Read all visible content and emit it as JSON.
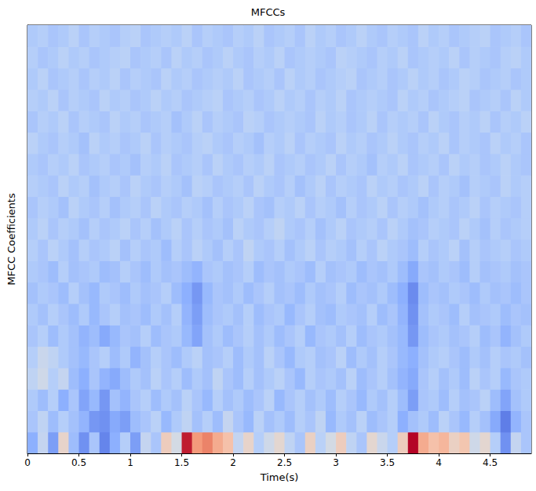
{
  "chart_data": {
    "type": "heatmap",
    "title": "MFCCs",
    "x_label": "Time(s)",
    "y_label": "MFCC Coefficients",
    "x": [
      0,
      0.1,
      0.2,
      0.3,
      0.4,
      0.5,
      0.6,
      0.7,
      0.8,
      0.9,
      1,
      1.1,
      1.2,
      1.3,
      1.4,
      1.5,
      1.6,
      1.7,
      1.8,
      1.9,
      2,
      2.1,
      2.2,
      2.3,
      2.4,
      2.5,
      2.6,
      2.7,
      2.8,
      2.9,
      3,
      3.1,
      3.2,
      3.3,
      3.4,
      3.5,
      3.6,
      3.7,
      3.8,
      3.9,
      4,
      4.1,
      4.2,
      4.3,
      4.4,
      4.5,
      4.6,
      4.7,
      4.8
    ],
    "y": [
      0,
      1,
      2,
      3,
      4,
      5,
      6,
      7,
      8,
      9,
      10,
      11,
      12,
      13,
      14,
      15,
      16,
      17,
      18,
      19
    ],
    "cells": [
      [
        -1.5,
        -0.5,
        -1.8,
        0.3,
        -1.2,
        -2.0,
        -1.0,
        -2.2,
        -1.5,
        -0.8,
        -1.8,
        -0.5,
        -1.0,
        0.5,
        -0.2,
        2.8,
        1.5,
        1.8,
        1.2,
        0.8,
        -0.5,
        0.3,
        -0.8,
        -0.3,
        0.2,
        -0.6,
        -1.0,
        0.4,
        -0.7,
        -0.2,
        0.5,
        -0.6,
        -1.0,
        0.2,
        -0.4,
        -0.8,
        0.5,
        3.0,
        1.2,
        0.8,
        1.0,
        0.4,
        0.7,
        -0.3,
        0.2,
        -0.8,
        -2.0,
        -0.5,
        -1.0
      ],
      [
        -1.0,
        -0.6,
        -1.2,
        -0.8,
        -1.1,
        -1.4,
        -1.9,
        -2.0,
        -1.6,
        -1.8,
        -1.2,
        -1.0,
        -0.7,
        -1.3,
        -0.9,
        -0.6,
        -1.1,
        -0.8,
        -1.2,
        -0.5,
        -1.0,
        -1.3,
        -0.7,
        -1.1,
        -0.9,
        -1.2,
        -0.8,
        -1.0,
        -0.6,
        -1.3,
        -0.9,
        -1.1,
        -0.7,
        -1.2,
        -1.0,
        -0.8,
        -1.5,
        -1.1,
        -0.9,
        -1.2,
        -0.7,
        -1.0,
        -1.3,
        -0.8,
        -1.1,
        -1.6,
        -2.3,
        -1.4,
        -1.0
      ],
      [
        -0.9,
        -1.2,
        -0.8,
        -1.5,
        -1.0,
        -1.7,
        -1.3,
        -1.9,
        -1.1,
        -1.4,
        -1.0,
        -0.8,
        -1.2,
        -0.9,
        -1.1,
        -0.7,
        -1.0,
        -1.3,
        -0.8,
        -1.1,
        -0.9,
        -1.2,
        -1.0,
        -0.7,
        -1.3,
        -1.0,
        -0.8,
        -1.1,
        -0.9,
        -1.2,
        -0.8,
        -1.0,
        -1.3,
        -0.9,
        -1.1,
        -0.8,
        -1.2,
        -1.8,
        -1.0,
        -0.9,
        -1.2,
        -0.8,
        -1.1,
        -1.0,
        -0.7,
        -1.2,
        -1.7,
        -1.1,
        -0.9
      ],
      [
        -0.6,
        -0.3,
        -0.8,
        -0.5,
        -1.2,
        -1.5,
        -1.0,
        -1.4,
        -1.6,
        -1.2,
        -0.9,
        -1.1,
        -0.7,
        -1.0,
        -0.8,
        -1.2,
        -0.9,
        -1.1,
        -0.6,
        -1.0,
        -1.2,
        -0.8,
        -1.1,
        -0.9,
        -0.7,
        -1.0,
        -1.3,
        -0.8,
        -1.0,
        -0.9,
        -1.1,
        -0.7,
        -1.2,
        -1.0,
        -0.8,
        -1.1,
        -1.4,
        -1.6,
        -1.0,
        -0.8,
        -1.1,
        -0.9,
        -1.2,
        -0.7,
        -1.0,
        -0.8,
        -1.3,
        -1.0,
        -0.9
      ],
      [
        -0.8,
        -0.4,
        -0.6,
        -0.9,
        -1.1,
        -1.3,
        -1.0,
        -0.8,
        -1.2,
        -0.9,
        -1.4,
        -1.1,
        -0.8,
        -1.0,
        -1.2,
        -0.9,
        -0.7,
        -1.1,
        -1.0,
        -0.8,
        -1.2,
        -0.9,
        -1.1,
        -0.7,
        -1.0,
        -1.3,
        -0.9,
        -0.8,
        -1.1,
        -1.0,
        -0.7,
        -1.2,
        -0.9,
        -1.1,
        -0.8,
        -1.0,
        -1.3,
        -1.5,
        -1.1,
        -0.9,
        -0.8,
        -1.0,
        -1.2,
        -0.9,
        -1.1,
        -0.8,
        -1.0,
        -0.9,
        -1.1
      ],
      [
        -1.0,
        -0.8,
        -1.2,
        -0.9,
        -1.1,
        -1.4,
        -1.2,
        -1.6,
        -1.3,
        -1.0,
        -1.1,
        -0.8,
        -1.2,
        -1.0,
        -0.9,
        -1.3,
        -1.7,
        -1.1,
        -0.9,
        -1.2,
        -1.0,
        -0.8,
        -1.1,
        -0.9,
        -1.2,
        -1.0,
        -0.8,
        -1.3,
        -1.0,
        -0.9,
        -1.1,
        -0.8,
        -1.2,
        -1.0,
        -0.9,
        -1.1,
        -1.3,
        -1.9,
        -1.2,
        -1.0,
        -0.9,
        -1.1,
        -1.0,
        -0.8,
        -1.2,
        -1.0,
        -1.4,
        -1.1,
        -0.9
      ],
      [
        -0.9,
        -1.1,
        -0.8,
        -1.0,
        -1.2,
        -0.9,
        -1.3,
        -1.0,
        -0.8,
        -1.1,
        -1.0,
        -1.2,
        -0.9,
        -1.1,
        -0.8,
        -1.4,
        -1.8,
        -1.2,
        -1.0,
        -0.9,
        -1.1,
        -0.8,
        -1.2,
        -1.0,
        -0.9,
        -1.3,
        -1.0,
        -0.8,
        -1.1,
        -1.2,
        -0.9,
        -1.0,
        -1.1,
        -0.8,
        -1.2,
        -1.0,
        -1.4,
        -2.0,
        -1.1,
        -0.9,
        -1.0,
        -1.2,
        -0.8,
        -1.1,
        -1.0,
        -0.9,
        -1.2,
        -1.0,
        -1.1
      ],
      [
        -1.1,
        -0.9,
        -1.0,
        -1.2,
        -0.8,
        -1.1,
        -1.3,
        -0.9,
        -1.0,
        -1.2,
        -0.9,
        -1.1,
        -1.0,
        -0.8,
        -1.2,
        -1.5,
        -1.9,
        -1.3,
        -1.0,
        -1.1,
        -0.9,
        -1.2,
        -1.0,
        -0.8,
        -1.1,
        -1.0,
        -1.2,
        -0.9,
        -1.1,
        -1.0,
        -0.8,
        -1.2,
        -1.0,
        -1.1,
        -0.9,
        -1.2,
        -1.5,
        -2.1,
        -1.2,
        -1.0,
        -1.1,
        -0.9,
        -1.0,
        -1.2,
        -0.9,
        -1.1,
        -1.0,
        -1.2,
        -1.0
      ],
      [
        -0.9,
        -1.0,
        -1.2,
        -0.8,
        -1.1,
        -1.0,
        -0.9,
        -1.2,
        -1.1,
        -0.8,
        -1.0,
        -1.2,
        -0.9,
        -1.1,
        -1.0,
        -1.2,
        -1.4,
        -1.0,
        -0.9,
        -1.1,
        -1.0,
        -0.8,
        -1.2,
        -1.0,
        -1.1,
        -0.9,
        -1.0,
        -1.2,
        -0.8,
        -1.1,
        -1.0,
        -0.9,
        -1.2,
        -1.0,
        -1.1,
        -0.9,
        -1.2,
        -1.6,
        -1.0,
        -1.1,
        -0.9,
        -1.0,
        -1.2,
        -0.8,
        -1.1,
        -1.0,
        -0.9,
        -1.1,
        -1.0
      ],
      [
        -0.8,
        -1.0,
        -0.7,
        -0.9,
        -1.1,
        -0.8,
        -1.0,
        -0.9,
        -0.7,
        -1.1,
        -0.8,
        -1.0,
        -0.9,
        -1.2,
        -0.8,
        -1.0,
        -0.7,
        -0.9,
        -1.1,
        -0.8,
        -1.0,
        -0.6,
        -0.9,
        -1.0,
        -0.8,
        -1.1,
        -0.9,
        -0.7,
        -1.0,
        -0.8,
        -0.9,
        -1.1,
        -0.8,
        -1.0,
        -0.7,
        -0.9,
        -1.0,
        -1.2,
        -0.8,
        -1.0,
        -0.9,
        -0.7,
        -1.1,
        -0.8,
        -1.0,
        -0.9,
        -0.8,
        -1.0,
        -0.9
      ],
      [
        -0.9,
        -0.7,
        -1.0,
        -0.8,
        -0.9,
        -1.1,
        -0.8,
        -1.0,
        -0.9,
        -0.7,
        -1.0,
        -0.8,
        -1.1,
        -0.9,
        -0.7,
        -1.0,
        -0.8,
        -1.0,
        -0.9,
        -1.1,
        -0.7,
        -0.9,
        -1.0,
        -0.8,
        -0.6,
        -0.9,
        -1.0,
        -0.8,
        -1.1,
        -0.9,
        -0.7,
        -1.0,
        -0.9,
        -0.8,
        -1.0,
        -0.7,
        -0.9,
        -1.1,
        -1.0,
        -0.8,
        -0.9,
        -1.0,
        -0.7,
        -0.9,
        -1.1,
        -0.8,
        -1.0,
        -0.9,
        -0.8
      ],
      [
        -1.0,
        -0.8,
        -0.9,
        -1.1,
        -0.7,
        -0.9,
        -1.0,
        -0.8,
        -1.1,
        -0.9,
        -0.8,
        -1.0,
        -0.7,
        -0.9,
        -1.0,
        -0.8,
        -0.9,
        -1.1,
        -0.8,
        -1.0,
        -0.9,
        -0.7,
        -1.0,
        -1.1,
        -0.8,
        -0.9,
        -0.7,
        -1.0,
        -0.8,
        -0.9,
        -1.1,
        -0.8,
        -1.0,
        -0.9,
        -0.7,
        -1.0,
        -0.8,
        -0.9,
        -1.1,
        -0.9,
        -0.8,
        -1.0,
        -0.9,
        -0.7,
        -1.0,
        -0.8,
        -0.9,
        -1.0,
        -0.8
      ],
      [
        -0.8,
        -0.9,
        -1.0,
        -0.7,
        -0.9,
        -0.8,
        -1.1,
        -0.9,
        -0.8,
        -1.0,
        -0.7,
        -0.9,
        -1.0,
        -0.8,
        -0.9,
        -1.1,
        -0.7,
        -0.8,
        -1.0,
        -0.9,
        -0.8,
        -1.0,
        -0.7,
        -0.9,
        -1.0,
        -0.8,
        -1.1,
        -0.9,
        -0.7,
        -1.0,
        -0.8,
        -0.9,
        -1.0,
        -0.7,
        -0.9,
        -0.8,
        -1.0,
        -0.9,
        -0.7,
        -1.0,
        -0.8,
        -0.9,
        -1.1,
        -0.8,
        -0.9,
        -1.0,
        -0.7,
        -0.9,
        -0.8
      ],
      [
        -0.9,
        -1.0,
        -0.8,
        -0.9,
        -0.7,
        -1.0,
        -0.9,
        -0.8,
        -1.0,
        -0.9,
        -1.1,
        -0.8,
        -0.9,
        -0.7,
        -1.0,
        -0.9,
        -0.8,
        -1.0,
        -0.7,
        -0.9,
        -1.0,
        -0.8,
        -0.9,
        -0.7,
        -1.0,
        -0.9,
        -0.8,
        -1.0,
        -0.9,
        -0.7,
        -1.0,
        -0.8,
        -0.9,
        -1.1,
        -0.8,
        -0.9,
        -0.7,
        -1.0,
        -0.9,
        -0.8,
        -1.0,
        -0.7,
        -0.9,
        -0.8,
        -1.0,
        -0.9,
        -0.7,
        -0.9,
        -1.0
      ],
      [
        -0.7,
        -0.9,
        -1.0,
        -0.8,
        -0.9,
        -1.1,
        -0.7,
        -0.9,
        -0.8,
        -1.0,
        -0.9,
        -0.7,
        -1.0,
        -0.8,
        -0.9,
        -1.0,
        -0.8,
        -0.7,
        -0.9,
        -1.0,
        -0.8,
        -0.9,
        -1.1,
        -0.8,
        -0.9,
        -0.7,
        -1.0,
        -0.8,
        -0.9,
        -1.0,
        -0.7,
        -0.9,
        -0.8,
        -1.0,
        -0.9,
        -0.7,
        -0.9,
        -1.0,
        -0.8,
        -0.9,
        -0.7,
        -1.0,
        -0.8,
        -0.9,
        -1.0,
        -0.7,
        -0.9,
        -0.8,
        -1.0
      ],
      [
        -1.0,
        -0.8,
        -0.9,
        -0.7,
        -1.0,
        -0.8,
        -0.9,
        -1.0,
        -0.7,
        -0.9,
        -0.8,
        -1.0,
        -0.9,
        -0.8,
        -1.1,
        -0.9,
        -0.7,
        -1.0,
        -0.8,
        -0.9,
        -1.0,
        -0.7,
        -0.8,
        -1.0,
        -0.9,
        -0.8,
        -0.9,
        -1.0,
        -0.7,
        -0.9,
        -0.8,
        -1.0,
        -0.9,
        -0.7,
        -1.0,
        -0.8,
        -0.9,
        -0.8,
        -1.0,
        -0.7,
        -0.9,
        -1.0,
        -0.8,
        -0.9,
        -0.7,
        -1.0,
        -0.8,
        -0.9,
        -0.7
      ],
      [
        -0.8,
        -0.9,
        -0.7,
        -1.0,
        -0.8,
        -0.9,
        -1.0,
        -0.7,
        -0.9,
        -0.8,
        -1.0,
        -0.9,
        -0.7,
        -0.9,
        -0.8,
        -1.0,
        -0.9,
        -0.8,
        -0.7,
        -1.0,
        -0.9,
        -0.8,
        -1.0,
        -0.9,
        -0.7,
        -0.9,
        -0.8,
        -1.0,
        -0.8,
        -0.9,
        -0.7,
        -1.0,
        -0.9,
        -0.8,
        -0.9,
        -1.0,
        -0.7,
        -0.9,
        -0.8,
        -1.0,
        -0.9,
        -0.8,
        -0.7,
        -1.0,
        -0.9,
        -0.8,
        -1.0,
        -0.7,
        -0.9
      ],
      [
        -0.9,
        -0.7,
        -1.0,
        -0.9,
        -0.8,
        -1.0,
        -0.8,
        -0.9,
        -0.7,
        -1.0,
        -0.8,
        -0.9,
        -1.0,
        -0.7,
        -0.9,
        -0.8,
        -1.0,
        -0.9,
        -0.8,
        -0.9,
        -0.7,
        -1.0,
        -0.9,
        -0.8,
        -1.0,
        -0.7,
        -0.9,
        -0.8,
        -1.0,
        -0.9,
        -0.8,
        -0.7,
        -1.0,
        -0.9,
        -0.8,
        -1.0,
        -0.9,
        -0.7,
        -0.9,
        -0.8,
        -1.0,
        -0.9,
        -0.7,
        -0.8,
        -1.0,
        -0.9,
        -0.8,
        -1.0,
        -0.9
      ],
      [
        -0.8,
        -1.0,
        -0.9,
        -0.7,
        -0.9,
        -0.8,
        -1.0,
        -0.9,
        -0.8,
        -0.7,
        -1.0,
        -0.9,
        -0.8,
        -1.0,
        -0.7,
        -0.9,
        -0.8,
        -1.0,
        -0.9,
        -0.7,
        -0.9,
        -1.0,
        -0.8,
        -0.9,
        -0.7,
        -1.0,
        -0.9,
        -0.8,
        -0.9,
        -1.0,
        -0.7,
        -0.8,
        -0.9,
        -1.0,
        -0.8,
        -0.9,
        -0.7,
        -1.0,
        -0.9,
        -0.8,
        -0.9,
        -0.7,
        -1.0,
        -0.8,
        -0.9,
        -1.0,
        -0.8,
        -0.7,
        -0.9
      ],
      [
        -0.9,
        -0.8,
        -1.0,
        -0.9,
        -0.7,
        -1.0,
        -0.8,
        -0.9,
        -1.0,
        -0.8,
        -0.7,
        -1.0,
        -0.9,
        -0.8,
        -0.9,
        -0.7,
        -1.0,
        -0.8,
        -0.9,
        -1.0,
        -0.8,
        -0.9,
        -0.7,
        -1.0,
        -0.9,
        -0.8,
        -1.0,
        -0.7,
        -0.9,
        -0.8,
        -1.0,
        -0.9,
        -0.7,
        -0.9,
        -1.0,
        -0.8,
        -0.9,
        -1.0,
        -0.7,
        -0.9,
        -0.8,
        -1.0,
        -0.9,
        -0.8,
        -0.7,
        -1.0,
        -0.9,
        -0.8,
        -1.0
      ]
    ],
    "xlim": [
      0,
      4.9
    ],
    "ylim": [
      0,
      20
    ],
    "xticks": [
      0,
      0.5,
      1,
      1.5,
      2,
      2.5,
      3,
      3.5,
      4,
      4.5
    ],
    "tick_labels": "x",
    "color_range": [
      -3,
      3
    ],
    "grid": false
  }
}
